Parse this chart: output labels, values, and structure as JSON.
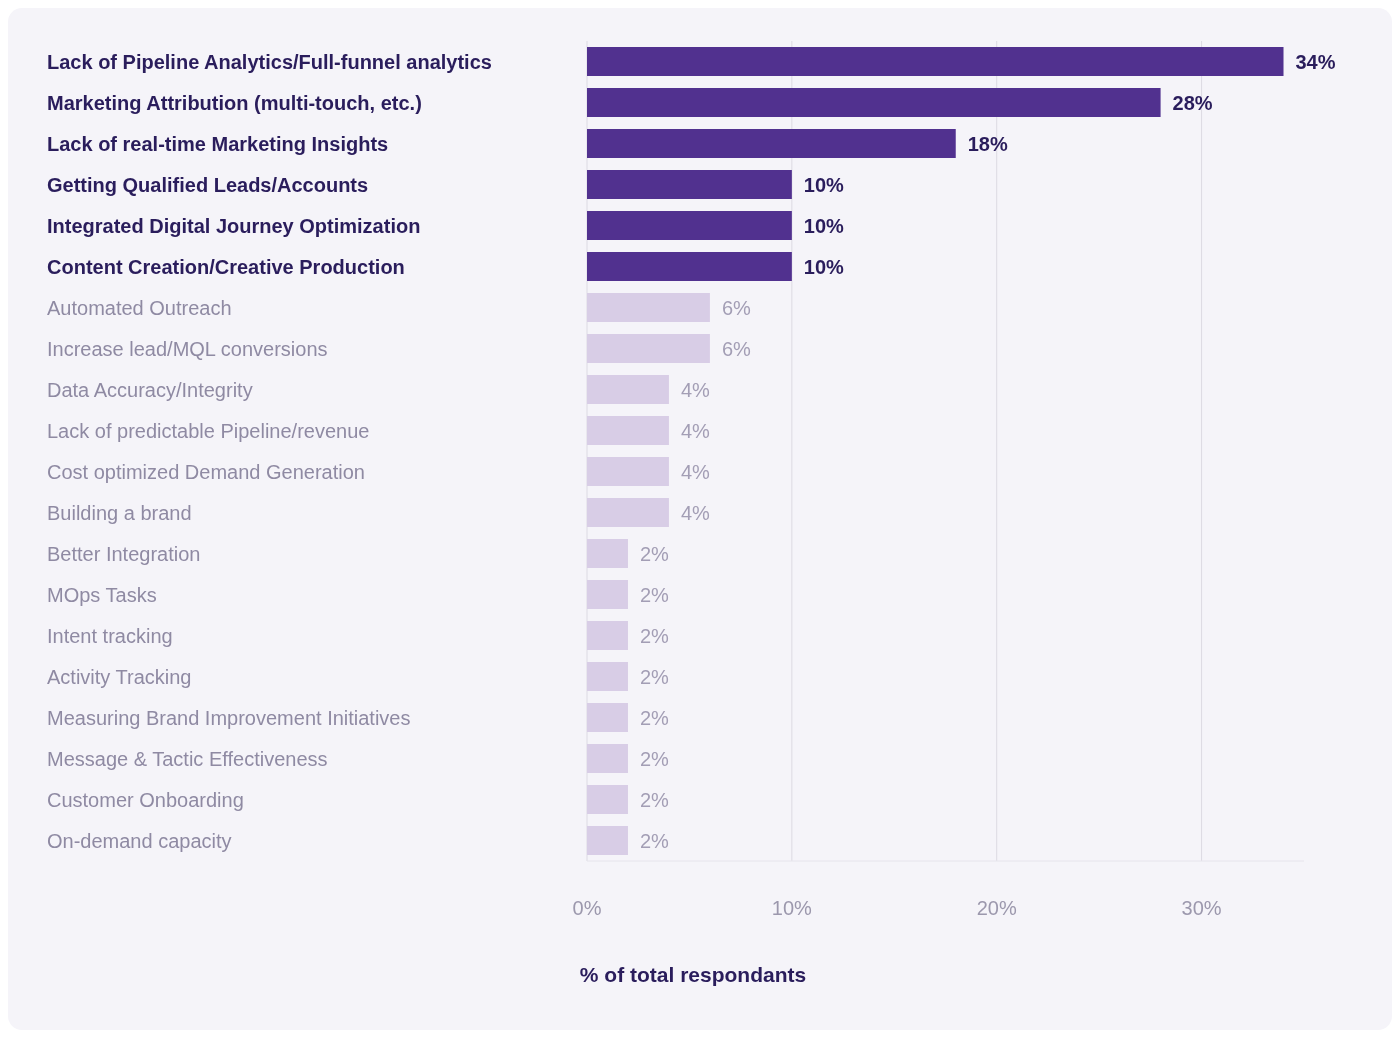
{
  "chart_data": {
    "type": "bar",
    "orientation": "horizontal",
    "xlabel": "% of total respondants",
    "categories": [
      "Lack of Pipeline Analytics/Full-funnel analytics",
      "Marketing Attribution (multi-touch, etc.)",
      "Lack of real-time Marketing Insights",
      "Getting Qualified Leads/Accounts",
      "Integrated Digital Journey Optimization",
      "Content Creation/Creative Production",
      "Automated Outreach",
      "Increase lead/MQL conversions",
      "Data Accuracy/Integrity",
      "Lack of predictable Pipeline/revenue",
      "Cost optimized Demand Generation",
      "Building a brand",
      "Better Integration",
      "MOps Tasks",
      "Intent tracking",
      "Activity Tracking",
      "Measuring Brand Improvement Initiatives",
      "Message & Tactic Effectiveness",
      "Customer Onboarding",
      "On-demand capacity"
    ],
    "values": [
      34,
      28,
      18,
      10,
      10,
      10,
      6,
      6,
      4,
      4,
      4,
      4,
      2,
      2,
      2,
      2,
      2,
      2,
      2,
      2
    ],
    "value_labels": [
      "34%",
      "28%",
      "18%",
      "10%",
      "10%",
      "10%",
      "6%",
      "6%",
      "4%",
      "4%",
      "4%",
      "4%",
      "2%",
      "2%",
      "2%",
      "2%",
      "2%",
      "2%",
      "2%",
      "2%"
    ],
    "colors": [
      "#51318f",
      "#51318f",
      "#51318f",
      "#51318f",
      "#51318f",
      "#51318f",
      "#d8cde6",
      "#d8cde6",
      "#d8cde6",
      "#d8cde6",
      "#d8cde6",
      "#d8cde6",
      "#d8cde6",
      "#d8cde6",
      "#d8cde6",
      "#d8cde6",
      "#d8cde6",
      "#d8cde6",
      "#d8cde6",
      "#d8cde6"
    ],
    "xlim": [
      0,
      35
    ],
    "xticks": [
      {
        "value": 0,
        "label": "0%"
      },
      {
        "value": 10,
        "label": "10%"
      },
      {
        "value": 20,
        "label": "20%"
      },
      {
        "value": 30,
        "label": "30%"
      }
    ],
    "grid": "x"
  }
}
